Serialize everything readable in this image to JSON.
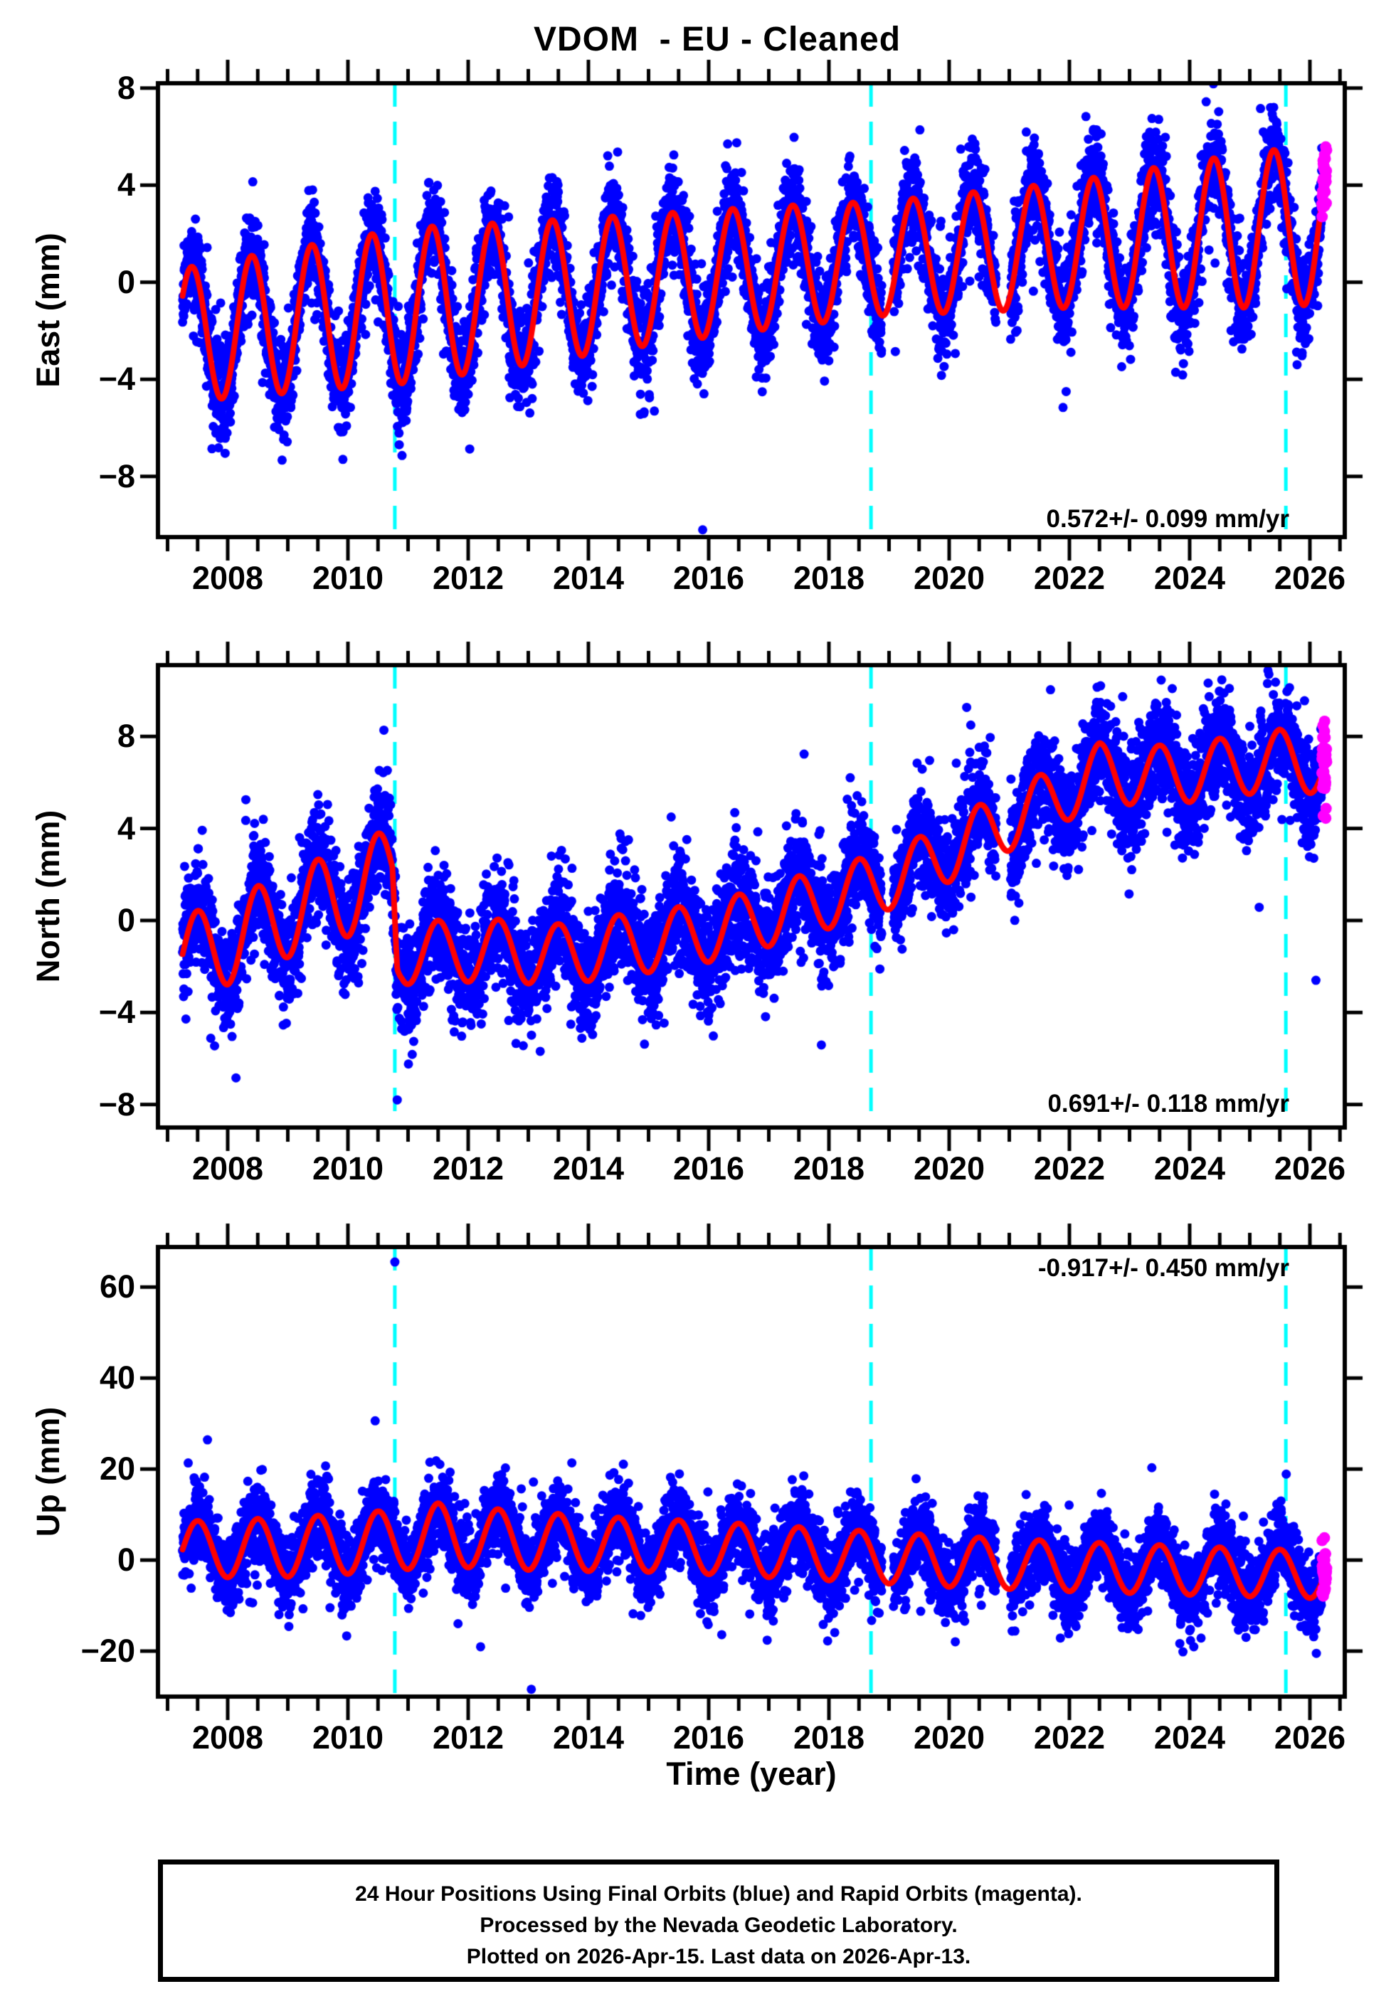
{
  "title": "VDOM  - EU - Cleaned",
  "station": "VDOM",
  "reference_frame": "EU",
  "solution_status": "Cleaned",
  "colors": {
    "final_orbits": "#0000ff",
    "rapid_orbits": "#ff00ff",
    "model_line": "#ff0000",
    "event_line": "#00ffff",
    "frame": "#000000",
    "background": "#ffffff"
  },
  "xaxis": {
    "label": "Time (year)",
    "range": [
      2006.84,
      2026.58
    ],
    "major_ticks": [
      2008,
      2010,
      2012,
      2014,
      2016,
      2018,
      2020,
      2022,
      2024,
      2026
    ],
    "minor_step": 0.5
  },
  "events": [
    2010.78,
    2018.7,
    2025.6
  ],
  "data_span": {
    "start": 2007.25,
    "end": 2026.28,
    "rapid_start": 2026.2,
    "gaps": [
      [
        2018.88,
        2019.07
      ],
      [
        2020.78,
        2021.02
      ]
    ]
  },
  "caption": {
    "line1": "24 Hour Positions Using Final Orbits (blue) and Rapid Orbits (magenta).",
    "line2": "Processed by the Nevada Geodetic Laboratory.",
    "line3": "Plotted on 2026-Apr-15. Last data on 2026-Apr-13."
  },
  "chart_data": [
    {
      "type": "scatter",
      "component": "East",
      "ylabel": "East (mm)",
      "ylim": [
        -10.5,
        8.2
      ],
      "yticks": [
        -8,
        -4,
        0,
        4,
        8
      ],
      "annotation": "0.572+/- 0.099 mm/yr",
      "velocity_mm_yr": 0.572,
      "velocity_uncertainty_mm_yr": 0.099,
      "annotation_corner": "bottom-right",
      "seed": 11,
      "sigma": 0.95,
      "phase_peak": 0.4,
      "mean_nodes": [
        [
          2007.2,
          -2.2
        ],
        [
          2009,
          -1.6
        ],
        [
          2011,
          -0.95
        ],
        [
          2013,
          -0.45
        ],
        [
          2015,
          0.1
        ],
        [
          2017,
          0.6
        ],
        [
          2019,
          1.0
        ],
        [
          2021,
          1.35
        ],
        [
          2023,
          1.75
        ],
        [
          2025,
          2.15
        ],
        [
          2026.4,
          2.4
        ]
      ],
      "amp_nodes": [
        [
          2007.2,
          2.75
        ],
        [
          2011,
          3.2
        ],
        [
          2015,
          2.7
        ],
        [
          2019,
          2.35
        ],
        [
          2022,
          2.6
        ],
        [
          2025,
          3.2
        ],
        [
          2026.4,
          3.3
        ]
      ],
      "outliers": [
        [
          2015.9,
          -10.2
        ]
      ]
    },
    {
      "type": "scatter",
      "component": "North",
      "ylabel": "North (mm)",
      "ylim": [
        -9.0,
        11.1
      ],
      "yticks": [
        -8,
        -4,
        0,
        4,
        8
      ],
      "annotation": "0.691+/- 0.118 mm/yr",
      "velocity_mm_yr": 0.691,
      "velocity_uncertainty_mm_yr": 0.118,
      "annotation_corner": "bottom-right",
      "seed": 22,
      "sigma": 1.1,
      "phase_peak": 0.5,
      "mean_nodes": [
        [
          2007.2,
          -1.5
        ],
        [
          2008,
          -1.0
        ],
        [
          2009,
          0.3
        ],
        [
          2010,
          1.2
        ],
        [
          2010.74,
          2.2
        ],
        [
          2010.82,
          -1.45
        ],
        [
          2011.5,
          -1.35
        ],
        [
          2012.5,
          -1.3
        ],
        [
          2013.5,
          -1.5
        ],
        [
          2014.5,
          -1.1
        ],
        [
          2015.5,
          -0.75
        ],
        [
          2016.5,
          -0.2
        ],
        [
          2017.5,
          0.6
        ],
        [
          2018.7,
          1.5
        ],
        [
          2019.5,
          2.3
        ],
        [
          2020.5,
          3.7
        ],
        [
          2021.5,
          5.0
        ],
        [
          2022.5,
          6.4
        ],
        [
          2023.5,
          6.3
        ],
        [
          2024.5,
          6.6
        ],
        [
          2025.5,
          7.0
        ],
        [
          2026.4,
          6.7
        ]
      ],
      "amp_nodes": [
        [
          2007.2,
          1.7
        ],
        [
          2009,
          1.9
        ],
        [
          2010.7,
          1.9
        ],
        [
          2010.9,
          1.35
        ],
        [
          2026.4,
          1.3
        ]
      ],
      "outliers": [
        [
          2008.3,
          4.35
        ],
        [
          2010.82,
          -7.8
        ],
        [
          2026.1,
          -2.6
        ]
      ]
    },
    {
      "type": "scatter",
      "component": "Up",
      "ylabel": "Up (mm)",
      "ylim": [
        -30,
        68.8
      ],
      "yticks": [
        -20,
        0,
        20,
        40,
        60
      ],
      "annotation": "-0.917+/- 0.450 mm/yr",
      "velocity_mm_yr": -0.917,
      "velocity_uncertainty_mm_yr": 0.45,
      "annotation_corner": "top-right",
      "seed": 33,
      "sigma": 4.0,
      "phase_peak": 0.5,
      "mean_nodes": [
        [
          2007.2,
          2.3
        ],
        [
          2009,
          2.8
        ],
        [
          2010.5,
          4.0
        ],
        [
          2011.5,
          5.6
        ],
        [
          2012.5,
          4.6
        ],
        [
          2013.5,
          3.9
        ],
        [
          2014.5,
          3.4
        ],
        [
          2015.5,
          3.0
        ],
        [
          2016.5,
          2.3
        ],
        [
          2018,
          1.2
        ],
        [
          2020,
          -0.3
        ],
        [
          2022,
          -1.4
        ],
        [
          2024,
          -2.3
        ],
        [
          2026.4,
          -3.3
        ]
      ],
      "amp_nodes": [
        [
          2007.2,
          6.2
        ],
        [
          2011.5,
          6.9
        ],
        [
          2015,
          5.8
        ],
        [
          2020,
          5.6
        ],
        [
          2026.4,
          5.2
        ]
      ],
      "outliers": [
        [
          2010.78,
          65.5
        ],
        [
          2013.05,
          -28.4
        ]
      ]
    }
  ]
}
